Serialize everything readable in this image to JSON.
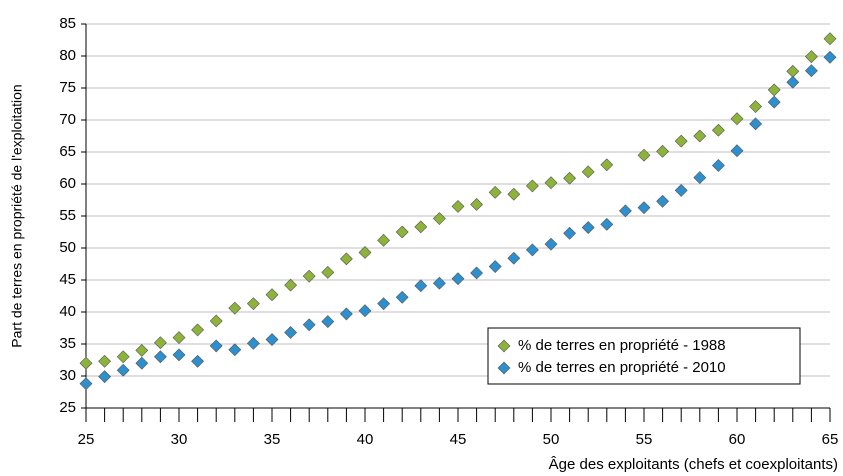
{
  "chart_data": {
    "type": "scatter",
    "xlabel": "Âge des exploitants (chefs et coexploitants)",
    "ylabel": "Part de terres en propriété de l'exploitation",
    "x": [
      25,
      26,
      27,
      28,
      29,
      30,
      31,
      32,
      33,
      34,
      35,
      36,
      37,
      38,
      39,
      40,
      41,
      42,
      43,
      44,
      45,
      46,
      47,
      48,
      49,
      50,
      51,
      52,
      53,
      54,
      55,
      56,
      57,
      58,
      59,
      60,
      61,
      62,
      63,
      64,
      65
    ],
    "series": [
      {
        "name": "% de terres en propriété - 1988",
        "color": "#8db33a",
        "values": [
          32.0,
          32.3,
          33.0,
          34.0,
          35.2,
          36.0,
          37.2,
          38.6,
          40.6,
          41.3,
          42.7,
          44.2,
          45.6,
          46.2,
          48.3,
          49.3,
          51.2,
          52.5,
          53.3,
          54.6,
          56.5,
          56.8,
          58.7,
          58.4,
          59.7,
          60.2,
          60.9,
          61.9,
          63.0,
          null,
          64.5,
          65.1,
          66.7,
          67.5,
          68.4,
          70.2,
          72.1,
          74.7,
          77.6,
          79.9,
          82.7
        ]
      },
      {
        "name": "% de terres en propriété - 2010",
        "color": "#2e8fce",
        "values": [
          28.8,
          29.9,
          30.9,
          32.0,
          33.0,
          33.3,
          32.3,
          34.7,
          34.1,
          35.1,
          35.7,
          36.8,
          38.0,
          38.5,
          39.7,
          40.2,
          41.3,
          42.3,
          44.1,
          44.5,
          45.2,
          46.1,
          47.1,
          48.4,
          49.7,
          50.6,
          52.3,
          53.2,
          53.7,
          55.8,
          56.3,
          57.3,
          59.0,
          61.0,
          62.9,
          65.2,
          69.4,
          72.8,
          75.9,
          77.7,
          79.8
        ]
      }
    ],
    "xlim": [
      25,
      65
    ],
    "xticks": [
      25,
      30,
      35,
      40,
      45,
      50,
      55,
      60,
      65
    ],
    "ylim": [
      25,
      85
    ],
    "yticks": [
      25,
      30,
      35,
      40,
      45,
      50,
      55,
      60,
      65,
      70,
      75,
      80,
      85
    ],
    "grid": true,
    "legend": "lower right"
  }
}
